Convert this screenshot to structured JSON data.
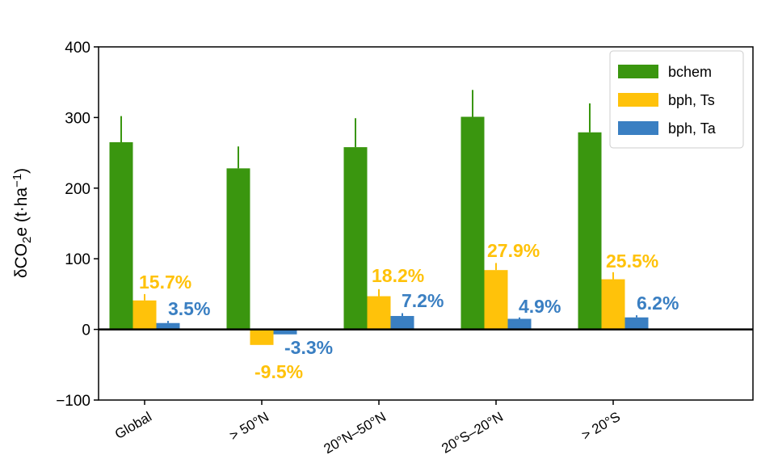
{
  "chart_data": {
    "type": "bar",
    "categories": [
      "Global",
      "> 50°N",
      "20°N–50°N",
      "20°S–20°N",
      "> 20°S"
    ],
    "series": [
      {
        "name": "bchem",
        "color": "#3a960f",
        "values": [
          265,
          228,
          258,
          301,
          279
        ],
        "error_upper": [
          302,
          259,
          299,
          339,
          320
        ],
        "labels": [
          "",
          "",
          "",
          "",
          ""
        ]
      },
      {
        "name": "bph, Ts",
        "color": "#ffc20a",
        "values": [
          41,
          -22,
          47,
          84,
          71
        ],
        "error_upper": [
          50,
          -22,
          57,
          94,
          81
        ],
        "labels": [
          "15.7%",
          "-9.5%",
          "18.2%",
          "27.9%",
          "25.5%"
        ]
      },
      {
        "name": "bph, Ta",
        "color": "#3a7fc2",
        "values": [
          9,
          -7,
          19,
          15,
          17
        ],
        "error_upper": [
          12,
          -7,
          23,
          17,
          20
        ],
        "labels": [
          "3.5%",
          "-3.3%",
          "7.2%",
          "4.9%",
          "6.2%"
        ]
      }
    ],
    "ylabel": "δCO2e (t·ha−1)",
    "ylabel_parts": {
      "main": "δCO",
      "sub": "2",
      "mid": "e (t·ha",
      "sup": "−1",
      "end": ")"
    },
    "ylim": [
      -100,
      400
    ],
    "yticks": [
      "−100",
      "0",
      "100",
      "200",
      "300",
      "400"
    ],
    "ytick_values": [
      -100,
      0,
      100,
      200,
      300,
      400
    ],
    "legend_position": "top-right",
    "grid": false,
    "zero_line": true
  }
}
